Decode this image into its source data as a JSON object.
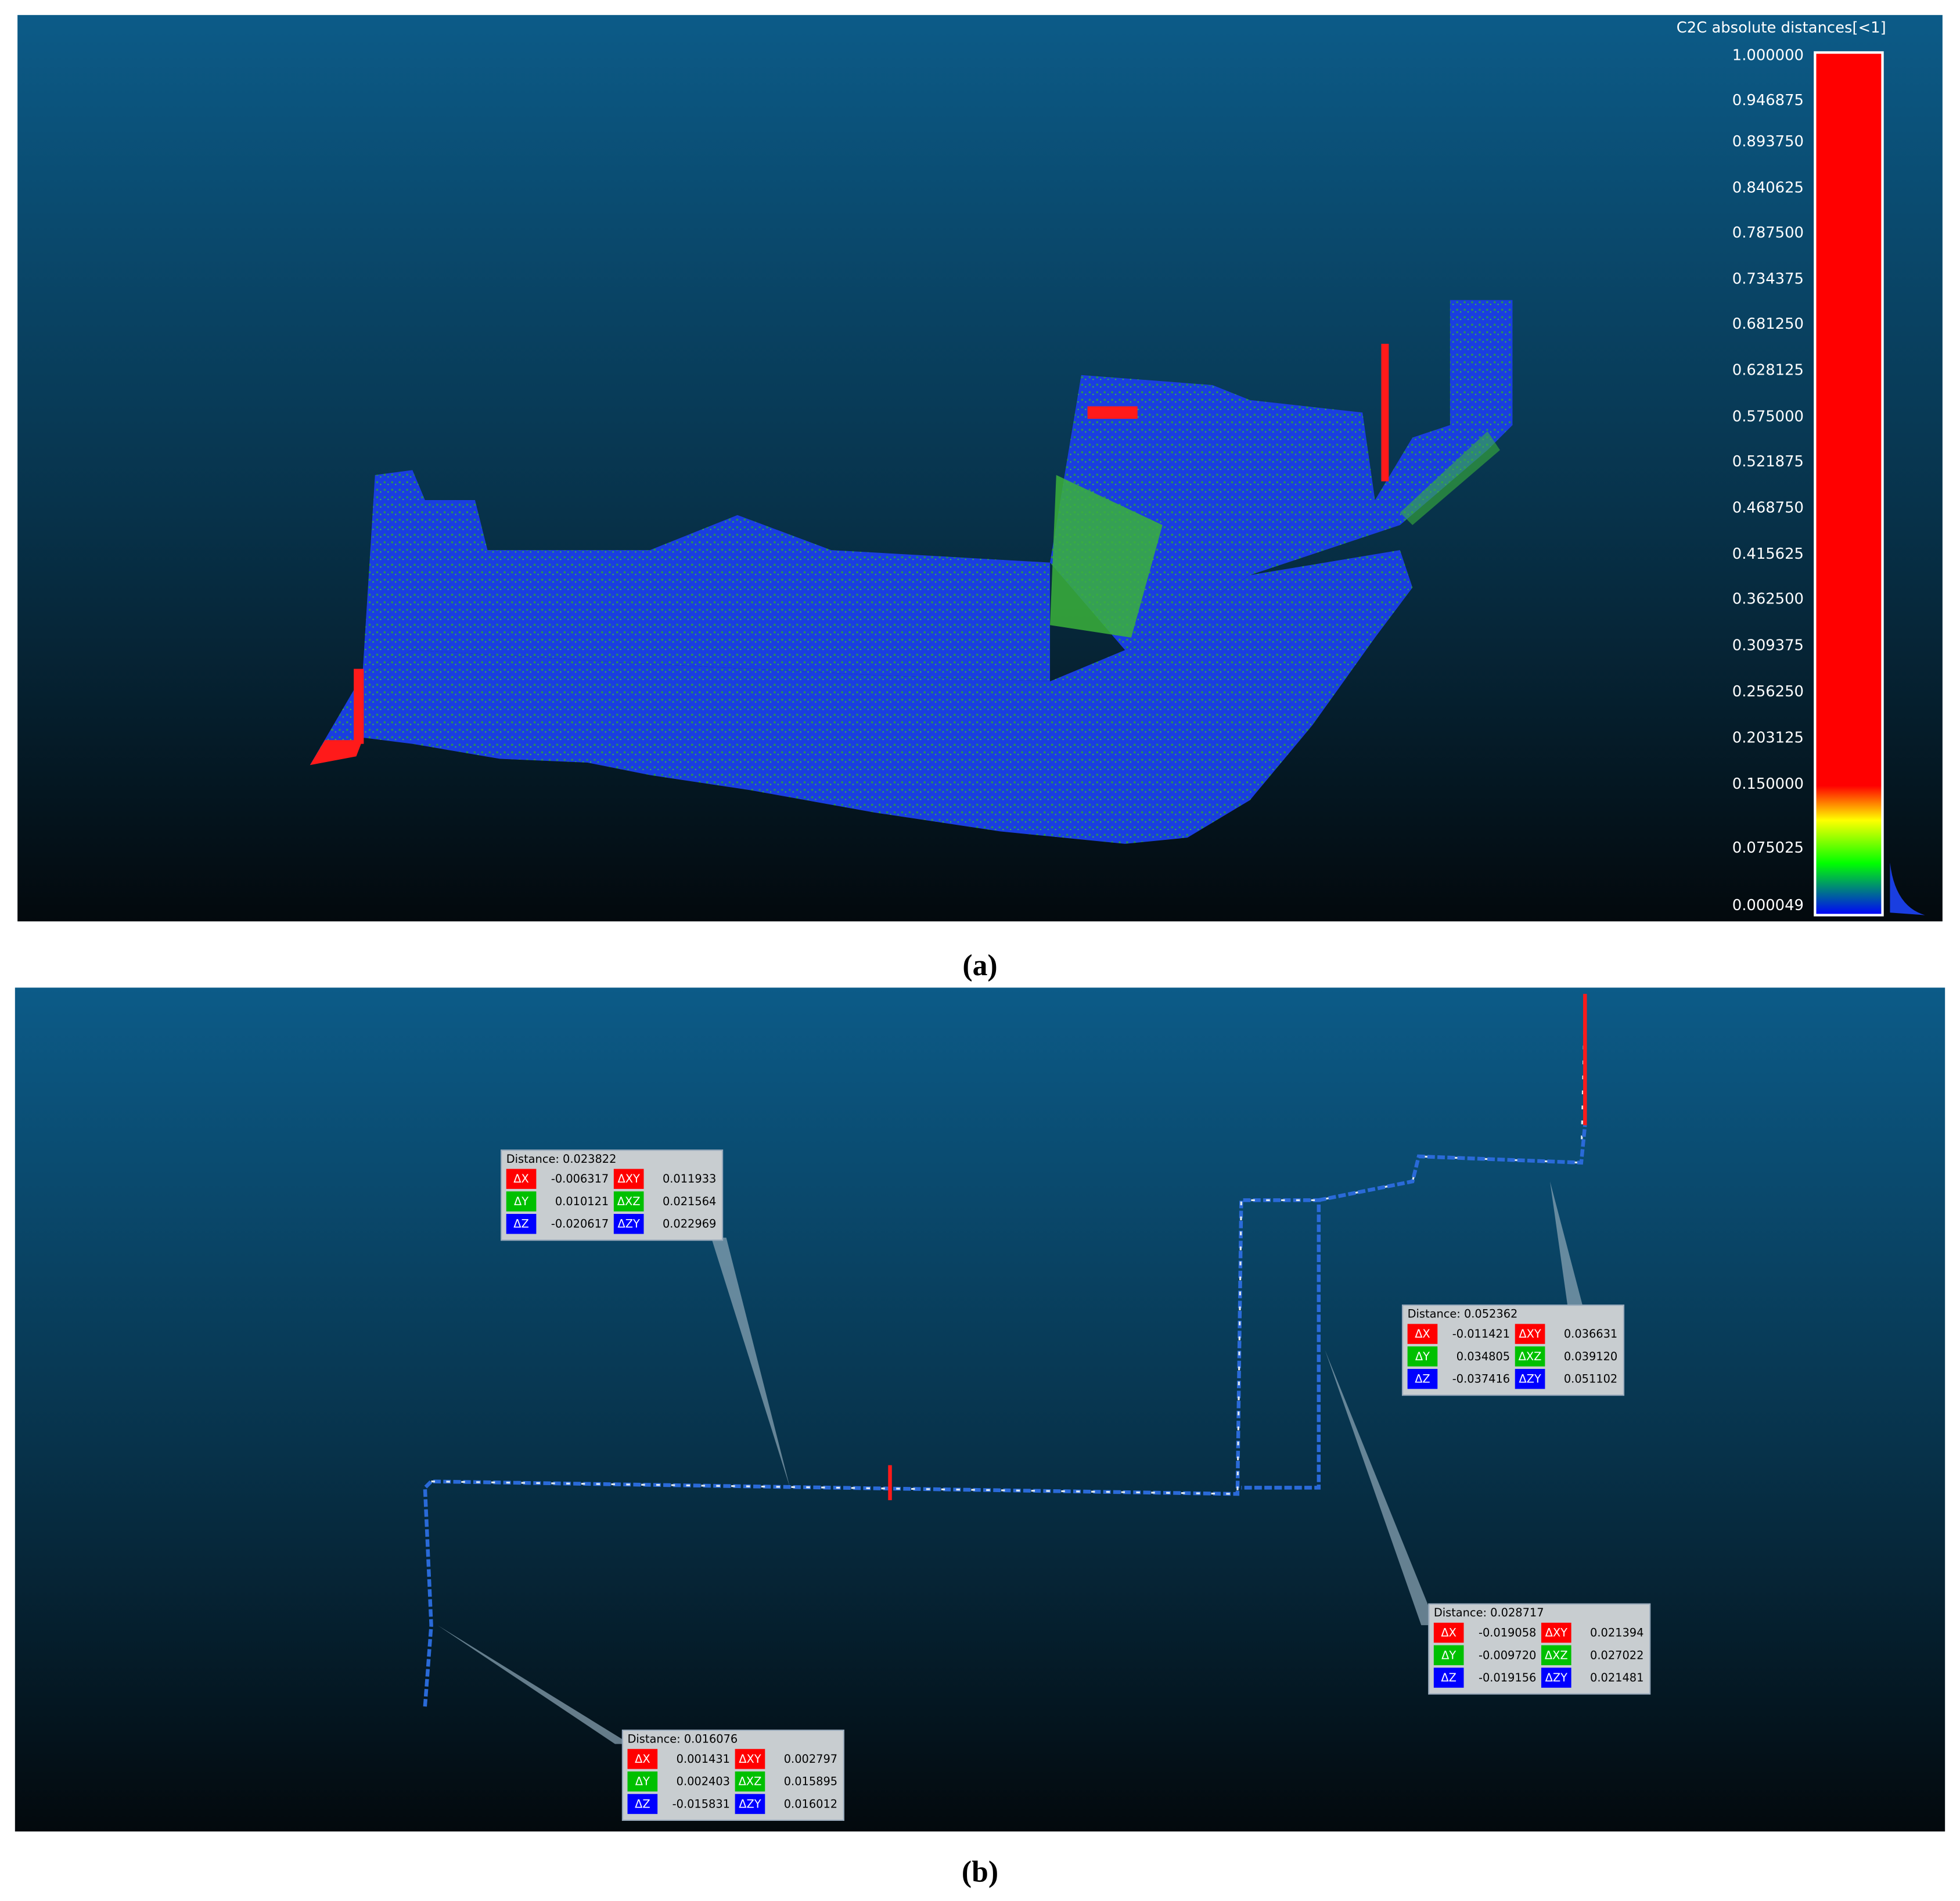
{
  "panel_a": {
    "scale_title": "C2C absolute distances[<1]",
    "scale_labels": [
      "1.000000",
      "0.946875",
      "0.893750",
      "0.840625",
      "0.787500",
      "0.734375",
      "0.681250",
      "0.628125",
      "0.575000",
      "0.521875",
      "0.468750",
      "0.415625",
      "0.362500",
      "0.309375",
      "0.256250",
      "0.203125",
      "0.150000",
      "0.075025",
      "0.000049"
    ],
    "caption": "(a)"
  },
  "panel_b": {
    "caption": "(b)",
    "callouts": [
      {
        "title": "Distance: 0.023822",
        "rows": [
          [
            "ΔX",
            "-0.006317",
            "ΔXY",
            "0.011933"
          ],
          [
            "ΔY",
            "0.010121",
            "ΔXZ",
            "0.021564"
          ],
          [
            "ΔZ",
            "-0.020617",
            "ΔZY",
            "0.022969"
          ]
        ]
      },
      {
        "title": "Distance: 0.052362",
        "rows": [
          [
            "ΔX",
            "-0.011421",
            "ΔXY",
            "0.036631"
          ],
          [
            "ΔY",
            "0.034805",
            "ΔXZ",
            "0.039120"
          ],
          [
            "ΔZ",
            "-0.037416",
            "ΔZY",
            "0.051102"
          ]
        ]
      },
      {
        "title": "Distance: 0.028717",
        "rows": [
          [
            "ΔX",
            "-0.019058",
            "ΔXY",
            "0.021394"
          ],
          [
            "ΔY",
            "-0.009720",
            "ΔXZ",
            "0.027022"
          ],
          [
            "ΔZ",
            "-0.019156",
            "ΔZY",
            "0.021481"
          ]
        ]
      },
      {
        "title": "Distance: 0.016076",
        "rows": [
          [
            "ΔX",
            "0.001431",
            "ΔXY",
            "0.002797"
          ],
          [
            "ΔY",
            "0.002403",
            "ΔXZ",
            "0.015895"
          ],
          [
            "ΔZ",
            "-0.015831",
            "ΔZY",
            "0.016012"
          ]
        ]
      }
    ]
  }
}
